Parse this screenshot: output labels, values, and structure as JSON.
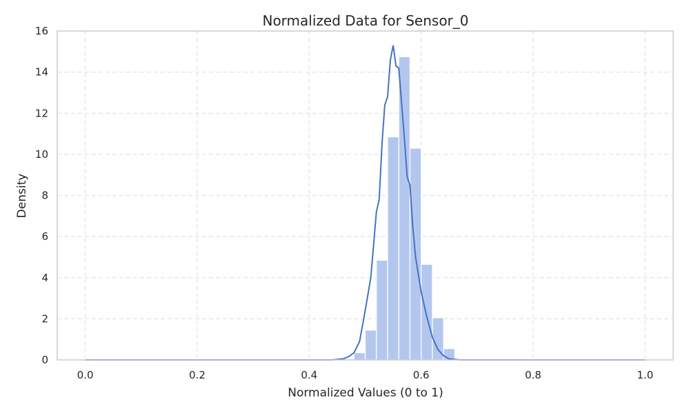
{
  "chart_data": {
    "type": "bar",
    "title": "Normalized Data for Sensor_0",
    "xlabel": "Normalized Values (0 to 1)",
    "ylabel": "Density",
    "xlim": [
      -0.05,
      1.05
    ],
    "ylim": [
      0,
      16
    ],
    "grid": true,
    "x_ticks": [
      "0.0",
      "0.2",
      "0.4",
      "0.6",
      "0.8",
      "1.0"
    ],
    "y_ticks": [
      "0",
      "2",
      "4",
      "6",
      "8",
      "10",
      "12",
      "14",
      "16"
    ],
    "colors": {
      "bars": "#b3c7ee",
      "kde": "#4472c4",
      "grid": "#dcdcdc",
      "frame": "#cccccc"
    },
    "histogram": {
      "bin_start": 0.0,
      "bin_width": 0.02,
      "values": [
        0.05,
        0.05,
        0.05,
        0.05,
        0.05,
        0.05,
        0.05,
        0.05,
        0.05,
        0.05,
        0.05,
        0.05,
        0.05,
        0.05,
        0.05,
        0.05,
        0.05,
        0.05,
        0.05,
        0.05,
        0.05,
        0.05,
        0.05,
        0.05,
        0.35,
        1.45,
        4.85,
        10.85,
        14.75,
        10.3,
        4.65,
        2.05,
        0.55,
        0.05,
        0.05,
        0.05,
        0.05,
        0.05,
        0.05,
        0.05,
        0.05,
        0.05,
        0.05,
        0.05,
        0.05,
        0.05,
        0.05,
        0.05,
        0.05,
        0.05
      ]
    },
    "kde": {
      "x": [
        0.0,
        0.44,
        0.46,
        0.47,
        0.48,
        0.49,
        0.5,
        0.51,
        0.52,
        0.525,
        0.53,
        0.535,
        0.54,
        0.545,
        0.55,
        0.555,
        0.56,
        0.565,
        0.57,
        0.575,
        0.58,
        0.585,
        0.59,
        0.6,
        0.61,
        0.62,
        0.63,
        0.64,
        0.65,
        0.67,
        1.0
      ],
      "y": [
        0.0,
        0.0,
        0.05,
        0.15,
        0.35,
        0.9,
        2.4,
        4.0,
        7.2,
        7.8,
        10.5,
        12.4,
        12.8,
        14.6,
        15.3,
        14.3,
        14.2,
        12.5,
        10.8,
        8.9,
        8.5,
        6.5,
        5.0,
        3.3,
        2.1,
        1.1,
        0.5,
        0.2,
        0.05,
        0.0,
        0.0
      ]
    }
  }
}
